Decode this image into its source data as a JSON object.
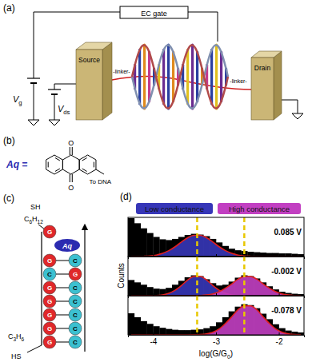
{
  "panels": {
    "a": {
      "label": "(a)",
      "gate": "EC gate",
      "vg": {
        "main": "V",
        "sub": "g"
      },
      "vds": {
        "main": "V",
        "sub": "ds"
      },
      "source": "Source",
      "drain": "Drain",
      "linker_left": "-linker-",
      "linker_right": "-linker-"
    },
    "b": {
      "label": "(b)",
      "name": "Aq =",
      "oxygen_top": "O",
      "oxygen_bottom": "O",
      "attachment": "To DNA"
    },
    "c": {
      "label": "(c)",
      "top_thiol": "SH",
      "top_linker": "C6H12",
      "top_base": "G",
      "probe": "Aq",
      "pairs": [
        [
          "G",
          "C"
        ],
        [
          "C",
          "G"
        ],
        [
          "G",
          "C"
        ],
        [
          "G",
          "C"
        ],
        [
          "G",
          "C"
        ],
        [
          "G",
          "C"
        ],
        [
          "G",
          "C"
        ]
      ],
      "bottom_linker": "C3H6",
      "bottom_thiol": "HS"
    },
    "d": {
      "label": "(d)",
      "legend": [
        {
          "name": "Low conductance",
          "color": "#3636b8"
        },
        {
          "name": "High conductance",
          "color": "#c23fc2"
        }
      ],
      "y_label": "Counts"
    }
  },
  "chart_data": [
    {
      "type": "histogram",
      "title": "0.085 V",
      "color": "#000000",
      "bins": [
        -4.4,
        -4.3,
        -4.2,
        -4.1,
        -4.0,
        -3.9,
        -3.8,
        -3.7,
        -3.6,
        -3.5,
        -3.4,
        -3.3,
        -3.2,
        -3.1,
        -3.0,
        -2.9,
        -2.8,
        -2.7,
        -2.6,
        -2.5,
        -2.4,
        -2.3,
        -2.2,
        -2.1,
        -2.0,
        -1.9,
        -1.8,
        -1.7,
        -1.6
      ],
      "values": [
        98,
        85,
        72,
        60,
        50,
        44,
        42,
        45,
        50,
        55,
        58,
        56,
        52,
        45,
        36,
        27,
        20,
        16,
        14,
        12,
        11,
        10,
        9,
        9,
        8,
        8,
        7,
        6
      ],
      "series": [
        {
          "type": "area",
          "color": "#3636b8",
          "x": [
            -4.35,
            -4.25,
            -4.15,
            -4.05,
            -3.95,
            -3.85,
            -3.75,
            -3.65,
            -3.55,
            -3.45,
            -3.35,
            -3.25,
            -3.15,
            -3.05,
            -2.95,
            -2.85,
            -2.75,
            -2.65,
            -2.55,
            -2.45,
            -2.35,
            -2.25,
            -2.15,
            -2.05,
            -1.95,
            -1.85,
            -1.75,
            -1.65
          ],
          "values": [
            0,
            0.2,
            0.6,
            1.5,
            3.7,
            8,
            15,
            25,
            37,
            48,
            54,
            54,
            48,
            37,
            25,
            15,
            8,
            3.7,
            1.5,
            0.6,
            0.2,
            0,
            0,
            0,
            0,
            0,
            0,
            0
          ]
        }
      ],
      "vlines": [
        -3.3,
        -2.55
      ],
      "xlim": [
        -4.4,
        -1.6
      ],
      "xticks": [
        -4,
        -3,
        -2
      ],
      "ylim": [
        0,
        100
      ],
      "tick_labels": false
    },
    {
      "type": "histogram",
      "title": "-0.002 V",
      "color": "#000000",
      "bins": [
        -4.4,
        -4.3,
        -4.2,
        -4.1,
        -4.0,
        -3.9,
        -3.8,
        -3.7,
        -3.6,
        -3.5,
        -3.4,
        -3.3,
        -3.2,
        -3.1,
        -3.0,
        -2.9,
        -2.8,
        -2.7,
        -2.6,
        -2.5,
        -2.4,
        -2.3,
        -2.2,
        -2.1,
        -2.0,
        -1.9,
        -1.8,
        -1.7,
        -1.6
      ],
      "values": [
        40,
        34,
        28,
        22,
        18,
        17,
        20,
        28,
        38,
        47,
        52,
        50,
        42,
        32,
        26,
        28,
        36,
        46,
        52,
        50,
        44,
        34,
        24,
        16,
        10,
        7,
        5,
        4
      ],
      "series": [
        {
          "type": "area",
          "color": "#3636b8",
          "x": [
            -4.35,
            -4.25,
            -4.15,
            -4.05,
            -3.95,
            -3.85,
            -3.75,
            -3.65,
            -3.55,
            -3.45,
            -3.35,
            -3.25,
            -3.15,
            -3.05,
            -2.95,
            -2.85,
            -2.75,
            -2.65,
            -2.55,
            -2.45,
            -2.35,
            -2.25,
            -2.15,
            -2.05,
            -1.95,
            -1.85,
            -1.75,
            -1.65
          ],
          "values": [
            0,
            0,
            0,
            0.2,
            0.6,
            2.2,
            6,
            14,
            26,
            40,
            49,
            49,
            40,
            26,
            14,
            6,
            2.2,
            0.6,
            0.2,
            0,
            0,
            0,
            0,
            0,
            0,
            0,
            0,
            0
          ]
        },
        {
          "type": "area",
          "color": "#c23fc2",
          "x": [
            -4.35,
            -4.25,
            -4.15,
            -4.05,
            -3.95,
            -3.85,
            -3.75,
            -3.65,
            -3.55,
            -3.45,
            -3.35,
            -3.25,
            -3.15,
            -3.05,
            -2.95,
            -2.85,
            -2.75,
            -2.65,
            -2.55,
            -2.45,
            -2.35,
            -2.25,
            -2.15,
            -2.05,
            -1.95,
            -1.85,
            -1.75,
            -1.65
          ],
          "values": [
            0,
            0,
            0,
            0,
            0,
            0,
            0,
            0,
            0,
            0,
            0.2,
            0.6,
            1.7,
            4.4,
            10,
            19,
            30,
            42,
            49,
            49,
            42,
            30,
            19,
            10,
            4.4,
            1.7,
            0.6,
            0.2
          ]
        }
      ],
      "vlines": [
        -3.3,
        -2.55
      ],
      "xlim": [
        -4.4,
        -1.6
      ],
      "xticks": [
        -4,
        -3,
        -2
      ],
      "ylim": [
        0,
        100
      ],
      "tick_labels": false
    },
    {
      "type": "histogram",
      "title": "-0.078 V",
      "color": "#000000",
      "bins": [
        -4.4,
        -4.3,
        -4.2,
        -4.1,
        -4.0,
        -3.9,
        -3.8,
        -3.7,
        -3.6,
        -3.5,
        -3.4,
        -3.3,
        -3.2,
        -3.1,
        -3.0,
        -2.9,
        -2.8,
        -2.7,
        -2.6,
        -2.5,
        -2.4,
        -2.3,
        -2.2,
        -2.1,
        -2.0,
        -1.9,
        -1.8,
        -1.7,
        -1.6
      ],
      "values": [
        55,
        45,
        35,
        28,
        22,
        18,
        15,
        13,
        12,
        12,
        13,
        14,
        17,
        22,
        32,
        45,
        60,
        72,
        78,
        76,
        68,
        54,
        40,
        27,
        17,
        11,
        8,
        6
      ],
      "series": [
        {
          "type": "area",
          "color": "#c23fc2",
          "x": [
            -4.35,
            -4.25,
            -4.15,
            -4.05,
            -3.95,
            -3.85,
            -3.75,
            -3.65,
            -3.55,
            -3.45,
            -3.35,
            -3.25,
            -3.15,
            -3.05,
            -2.95,
            -2.85,
            -2.75,
            -2.65,
            -2.55,
            -2.45,
            -2.35,
            -2.25,
            -2.15,
            -2.05,
            -1.95,
            -1.85,
            -1.75,
            -1.65
          ],
          "values": [
            0,
            0,
            0,
            0,
            0,
            0,
            0,
            0,
            0,
            0,
            0.3,
            0.9,
            2.6,
            6.7,
            15,
            29,
            46,
            64,
            74,
            74,
            64,
            46,
            29,
            15,
            6.7,
            2.6,
            0.9,
            0.3
          ]
        }
      ],
      "vlines": [
        -3.3,
        -2.55
      ],
      "xlim": [
        -4.4,
        -1.6
      ],
      "xticks": [
        -4,
        -3,
        -2
      ],
      "ylim": [
        0,
        100
      ],
      "tick_labels": "x",
      "x_label": {
        "text": "log(G/G",
        "sub": "0",
        "after": ")"
      }
    }
  ]
}
